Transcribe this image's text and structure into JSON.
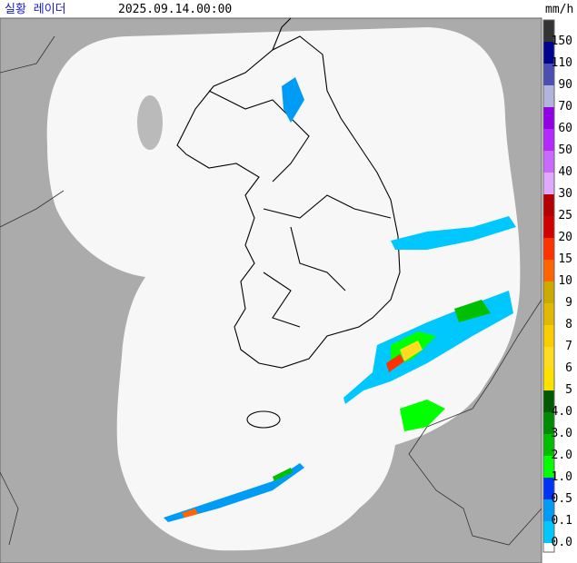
{
  "header": {
    "title": "실황 레이더",
    "time": "2025.09.14.00:00"
  },
  "legend": {
    "unit": "mm/h",
    "labels": [
      "150",
      "110",
      "90",
      "70",
      "60",
      "50",
      "40",
      "30",
      "25",
      "20",
      "15",
      "10",
      "9",
      "8",
      "7",
      "6",
      "5",
      "4.0",
      "3.0",
      "2.0",
      "1.0",
      "0.5",
      "0.1",
      "0.0"
    ],
    "colors": [
      "#333333",
      "#000390",
      "#4c4eb1",
      "#b3b4de",
      "#9300e4",
      "#b329ff",
      "#c969ff",
      "#e0a9ff",
      "#b40000",
      "#d20000",
      "#ff3200",
      "#ff6600",
      "#ccaa00",
      "#e0b900",
      "#f9cd00",
      "#ffdc1f",
      "#ffe100",
      "#005a00",
      "#008c00",
      "#00be00",
      "#00ff00",
      "#0033f5",
      "#009bf5",
      "#00c8ff"
    ]
  }
}
